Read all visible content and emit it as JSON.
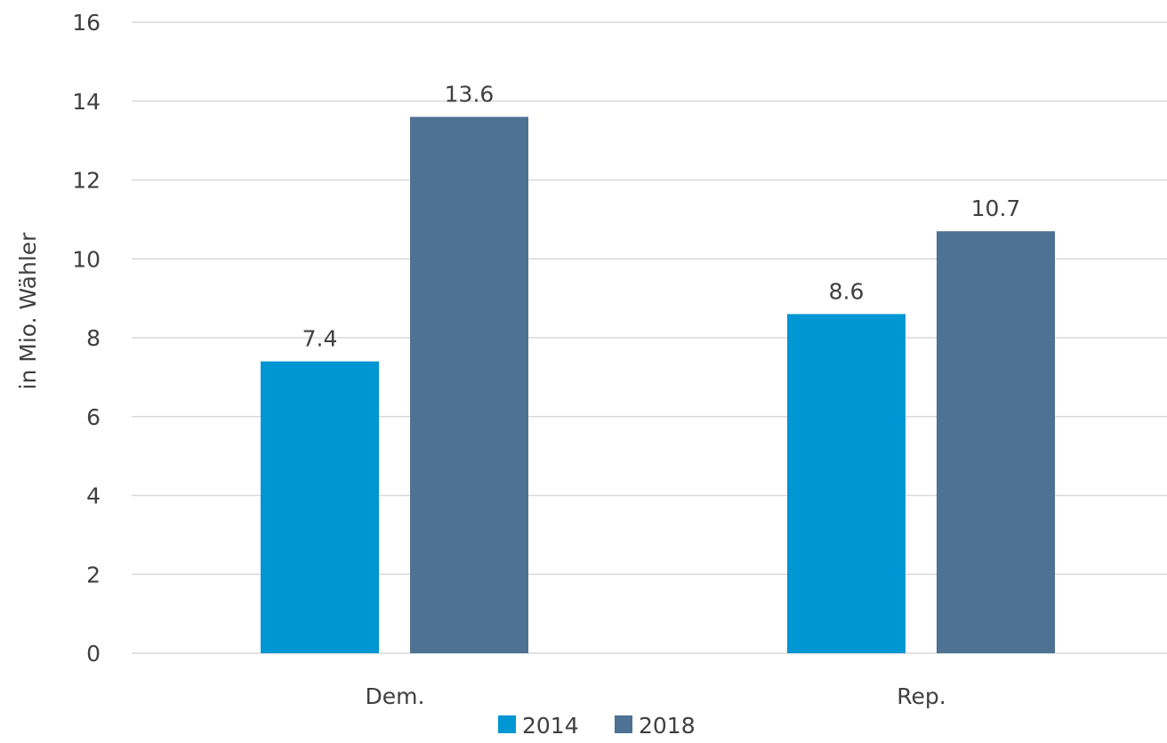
{
  "chart_data": {
    "type": "bar",
    "categories": [
      "Dem.",
      "Rep."
    ],
    "series": [
      {
        "name": "2014",
        "values": [
          7.4,
          8.6
        ],
        "color": "#0095d3"
      },
      {
        "name": "2018",
        "values": [
          13.6,
          10.7
        ],
        "color": "#4d7293"
      }
    ],
    "data_labels": [
      [
        "7.4",
        "8.6"
      ],
      [
        "13.6",
        "10.7"
      ]
    ],
    "title": "",
    "xlabel": "",
    "ylabel": "in Mio. Wähler",
    "ylim": [
      0,
      16
    ],
    "yticks": [
      0,
      2,
      4,
      6,
      8,
      10,
      12,
      14,
      16
    ],
    "grid": true,
    "legend": "bottom"
  }
}
